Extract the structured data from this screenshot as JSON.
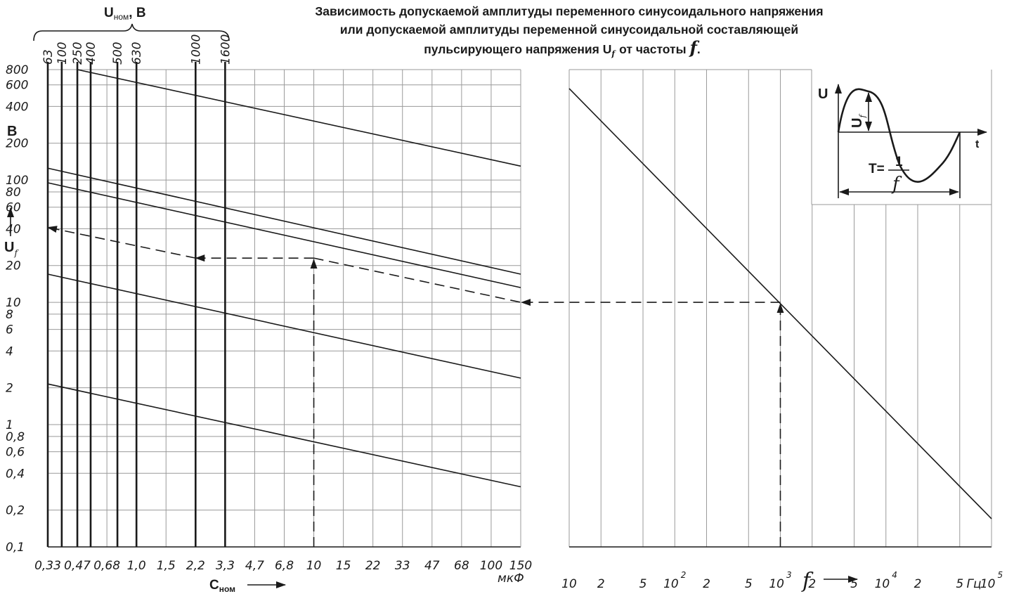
{
  "title_lines": [
    "Зависимость допускаемой амплитуды переменного синусоидального напряжения",
    "или допускаемой амплитуды переменной синусоидальной составляющей",
    "пульсирующего напряжения U"
  ],
  "title_suffix": "от частоты",
  "unom_label": "U",
  "unom_sub": "ном",
  "unom_unit": ", B",
  "uf_label": "U",
  "uf_sub": "f",
  "f_symbol": "f",
  "b_unit": "B",
  "cnom_label": "C",
  "cnom_sub": "ном",
  "cap_unit": "мкФ",
  "freq_unit": "Гц",
  "inset": {
    "u_label": "U",
    "t_label": "t",
    "uf_label": "U",
    "uf_sub": "f",
    "period_prefix": "T=",
    "period_num": "1",
    "period_den": "f"
  },
  "chart_data": [
    {
      "type": "line",
      "name": "left",
      "x_axis": {
        "scale": "log",
        "unit": "мкФ",
        "tick_values": [
          0.33,
          0.47,
          0.68,
          1.0,
          1.5,
          2.2,
          3.3,
          4.7,
          6.8,
          10,
          15,
          22,
          33,
          47,
          68,
          100,
          150
        ],
        "tick_labels": [
          "0,33",
          "0,47",
          "0,68",
          "1,0",
          "1,5",
          "2,2",
          "3,3",
          "4,7",
          "6,8",
          "10",
          "15",
          "22",
          "33",
          "47",
          "68",
          "100",
          "150"
        ],
        "xlim": [
          0.33,
          150
        ]
      },
      "y_axis": {
        "scale": "log",
        "unit": "B",
        "tick_values": [
          0.1,
          0.2,
          0.4,
          0.6,
          0.8,
          1,
          2,
          4,
          6,
          8,
          10,
          20,
          40,
          60,
          80,
          100,
          200,
          400,
          600,
          800
        ],
        "tick_labels": [
          "0,1",
          "0,2",
          "0,4",
          "0,6",
          "0,8",
          "1",
          "2",
          "4",
          "6",
          "8",
          "10",
          "20",
          "40",
          "60",
          "80",
          "100",
          "200",
          "400",
          "600",
          "800"
        ],
        "ylim": [
          0.1,
          800
        ]
      },
      "unom_labels": [
        "63",
        "100",
        "250",
        "400",
        "500",
        "630",
        "1000",
        "1600"
      ],
      "unom_x_caps": [
        0.33,
        0.39,
        0.47,
        0.555,
        0.78,
        1.0,
        2.2,
        3.3
      ],
      "series": [
        {
          "x": [
            0.47,
            150
          ],
          "y": [
            800,
            130
          ]
        },
        {
          "x": [
            0.33,
            150
          ],
          "y": [
            125,
            17
          ]
        },
        {
          "x": [
            0.33,
            150
          ],
          "y": [
            95,
            13.2
          ]
        },
        {
          "x": [
            0.33,
            150
          ],
          "y": [
            17,
            2.4
          ]
        },
        {
          "x": [
            0.33,
            150
          ],
          "y": [
            2.15,
            0.31
          ]
        }
      ],
      "example_path": {
        "x": [
          10,
          10,
          2.2,
          0.33
        ],
        "y": [
          0.1,
          23,
          23,
          41
        ]
      },
      "example_join": {
        "x": [
          10,
          150
        ],
        "y": [
          23,
          10
        ]
      }
    },
    {
      "type": "line",
      "name": "right",
      "x_axis": {
        "scale": "log",
        "unit": "Гц",
        "tick_values": [
          10,
          20,
          50,
          100,
          200,
          500,
          1000,
          2000,
          5000,
          10000,
          20000,
          50000,
          100000
        ],
        "tick_labels": [
          "10",
          "2",
          "5",
          "10",
          "2",
          "5",
          "10",
          "2",
          "5",
          "10",
          "2",
          "5",
          "10"
        ],
        "tick_exponents": [
          "",
          "",
          "",
          "2",
          "",
          "",
          "3",
          "",
          "",
          "4",
          "",
          "",
          "5"
        ],
        "xlim": [
          10,
          100000
        ]
      },
      "y_axis": {
        "scale": "log",
        "ylim": [
          0.1,
          800
        ]
      },
      "series": [
        {
          "x": [
            10,
            100000
          ],
          "y": [
            560,
            0.17
          ]
        }
      ],
      "example_path": {
        "x": [
          1000,
          1000
        ],
        "y": [
          0.1,
          10
        ]
      }
    }
  ]
}
